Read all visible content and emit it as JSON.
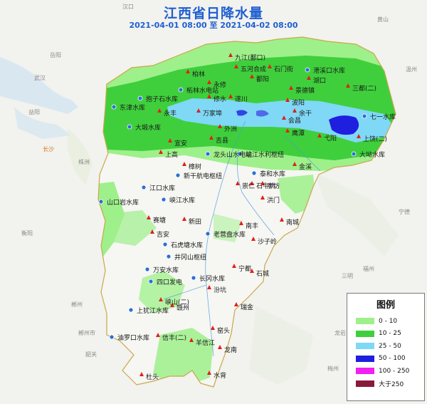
{
  "title": "江西省日降水量",
  "subtitle": "2021-04-01 08:00 至 2021-04-02 08:00",
  "legend": {
    "title": "图例",
    "items": [
      {
        "label": "0 - 10",
        "color": "#9ef08a"
      },
      {
        "label": "10 - 25",
        "color": "#3fcf3c"
      },
      {
        "label": "25 - 50",
        "color": "#7fd8f5"
      },
      {
        "label": "50 - 100",
        "color": "#1f1fe0"
      },
      {
        "label": "100 - 250",
        "color": "#f020f0"
      },
      {
        "label": "大于250",
        "color": "#8a1a3a"
      }
    ]
  },
  "stations": [
    "九江(鄱口)",
    "五河合成",
    "石门街",
    "港溪口水库",
    "柘林水电站",
    "修水",
    "抱子石水库",
    "东津水库",
    "万家埠",
    "外洲",
    "大塅水库",
    "宜安",
    "上高",
    "龙头山水电站",
    "峡江水利枢纽",
    "樟树",
    "新干航电枢纽",
    "吉安",
    "泰和水库",
    "石牛坑",
    "三都(二)",
    "弋阳",
    "七一水库",
    "上饶(二)",
    "大坳水库",
    "鹰潭",
    "金溪",
    "南城",
    "洪门",
    "廖坊",
    "崇仁",
    "山口岩水库",
    "江口水库",
    "峡江水库",
    "赛塘",
    "新田",
    "老营盘水库",
    "南丰",
    "沙子岭",
    "石虎塘水库",
    "井冈山枢纽",
    "万安水库",
    "四口发电",
    "长冈水库",
    "宁都",
    "石城",
    "汾坑",
    "瑞金",
    "峡山(二)",
    "上犹江水库",
    "赣州",
    "龙南",
    "信丰(二)",
    "窑头",
    "杜头",
    "水背",
    "油罗口水库",
    "羊信江",
    "景德镇",
    "鄱阳",
    "湖口",
    "波阳",
    "余干",
    "吉县",
    "永丰",
    "遂川",
    "会昌",
    "柏林",
    "永修"
  ],
  "external_labels": [
    "汉口",
    "武汉",
    "长沙",
    "株洲",
    "衡阳",
    "郴州",
    "福州",
    "三明",
    "龙岩",
    "梅州",
    "韶关",
    "黄山",
    "温州",
    "岳阳",
    "益阳",
    "宁德",
    "郴州市"
  ]
}
